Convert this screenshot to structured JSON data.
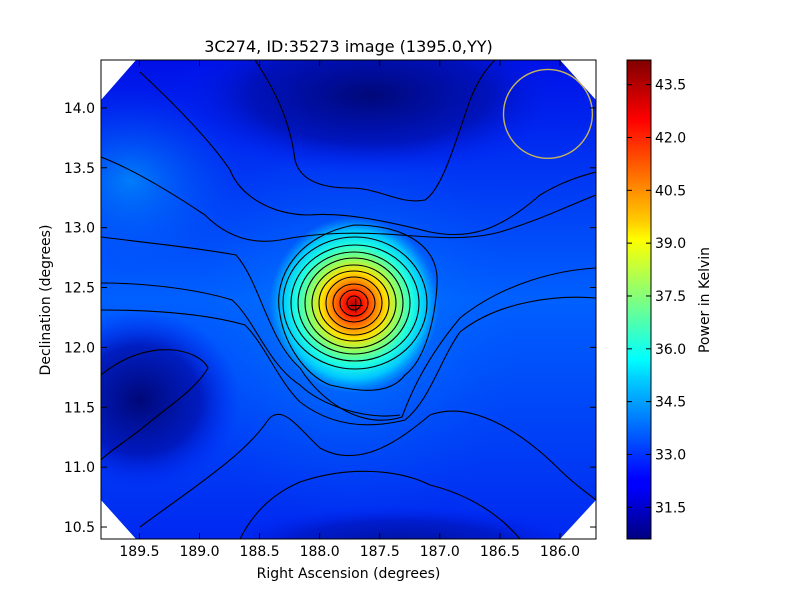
{
  "chart_data": {
    "type": "heatmap",
    "title": "3C274, ID:35273 image (1395.0,YY)",
    "xlabel": "Right Ascension (degrees)",
    "ylabel": "Declination (degrees)",
    "xlim": [
      189.82,
      185.7
    ],
    "ylim": [
      10.4,
      14.4
    ],
    "x_inverted": true,
    "x_ticks": [
      189.5,
      189.0,
      188.5,
      188.0,
      187.5,
      187.0,
      186.5,
      186.0
    ],
    "x_tick_labels": [
      "189.5",
      "189.0",
      "188.5",
      "188.0",
      "187.5",
      "187.0",
      "186.5",
      "186.0"
    ],
    "y_ticks": [
      10.5,
      11.0,
      11.5,
      12.0,
      12.5,
      13.0,
      13.5,
      14.0
    ],
    "y_tick_labels": [
      "10.5",
      "11.0",
      "11.5",
      "12.0",
      "12.5",
      "13.0",
      "13.5",
      "14.0"
    ],
    "colormap": "jet",
    "colorbar": {
      "label": "Power in Kelvin",
      "range": [
        30.6,
        44.2
      ],
      "ticks": [
        31.5,
        33.0,
        34.5,
        36.0,
        37.5,
        39.0,
        40.5,
        42.0,
        43.5
      ],
      "tick_labels": [
        "31.5",
        "33.0",
        "34.5",
        "36.0",
        "37.5",
        "39.0",
        "40.5",
        "42.0",
        "43.5"
      ]
    },
    "source_peak": {
      "ra": 187.7,
      "dec": 12.35,
      "value": 44.0
    },
    "beam_circle": {
      "ra": 186.1,
      "dec": 13.95,
      "radius_deg": 0.37,
      "color": "#c8b45a"
    },
    "grid": false,
    "contour_color": "#000000"
  }
}
